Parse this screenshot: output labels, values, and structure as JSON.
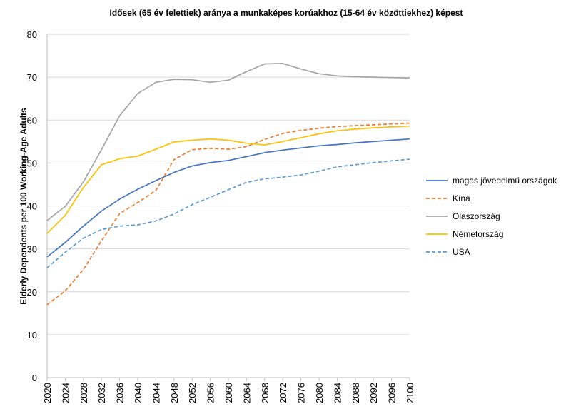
{
  "chart_data": {
    "type": "line",
    "title": "Idősek (65 év felettiek) aránya a munkaképes korúakhoz (15-64 év közöttiekhez) képest",
    "xlabel": "",
    "ylabel": "Elderly Dependents per 100 Working-Age Adults",
    "ylim": [
      0,
      80
    ],
    "yticks": [
      0,
      10,
      20,
      30,
      40,
      50,
      60,
      70,
      80
    ],
    "grid": true,
    "legend": "right",
    "x": [
      2020,
      2024,
      2028,
      2032,
      2036,
      2040,
      2044,
      2048,
      2052,
      2056,
      2060,
      2064,
      2068,
      2072,
      2076,
      2080,
      2084,
      2088,
      2092,
      2096,
      2100
    ],
    "series": [
      {
        "name": "magas jövedelmű országok",
        "color": "#4472C4",
        "dash": "solid",
        "values": [
          28.1,
          31.5,
          35.3,
          38.8,
          41.6,
          43.9,
          45.9,
          47.8,
          49.3,
          50.1,
          50.6,
          51.5,
          52.4,
          53.0,
          53.5,
          54.0,
          54.3,
          54.7,
          55.0,
          55.3,
          55.6
        ]
      },
      {
        "name": "Kína",
        "color": "#ED7D31",
        "dash": "dashed",
        "values": [
          17.0,
          20.2,
          25.2,
          31.9,
          38.2,
          40.8,
          43.6,
          50.8,
          53.1,
          53.4,
          53.2,
          53.8,
          55.5,
          56.9,
          57.6,
          58.1,
          58.5,
          58.7,
          58.9,
          59.1,
          59.3
        ]
      },
      {
        "name": "Olaszország",
        "color": "#A5A5A5",
        "dash": "solid",
        "values": [
          36.6,
          39.9,
          45.6,
          53.1,
          61.0,
          66.2,
          68.8,
          69.5,
          69.4,
          68.8,
          69.3,
          71.3,
          73.1,
          73.2,
          71.9,
          70.8,
          70.3,
          70.1,
          70.0,
          69.9,
          69.8
        ]
      },
      {
        "name": "Németország",
        "color": "#FFC000",
        "dash": "solid",
        "values": [
          33.6,
          37.8,
          44.3,
          49.6,
          51.0,
          51.6,
          53.2,
          54.9,
          55.3,
          55.6,
          55.3,
          54.6,
          54.2,
          55.0,
          55.9,
          56.8,
          57.5,
          57.9,
          58.2,
          58.4,
          58.6
        ]
      },
      {
        "name": "USA",
        "color": "#5B9BD5",
        "dash": "dashed",
        "values": [
          25.6,
          29.2,
          32.5,
          34.5,
          35.3,
          35.6,
          36.5,
          38.1,
          40.3,
          42.0,
          43.8,
          45.5,
          46.3,
          46.7,
          47.2,
          48.1,
          49.1,
          49.6,
          50.1,
          50.5,
          50.9
        ]
      }
    ]
  }
}
